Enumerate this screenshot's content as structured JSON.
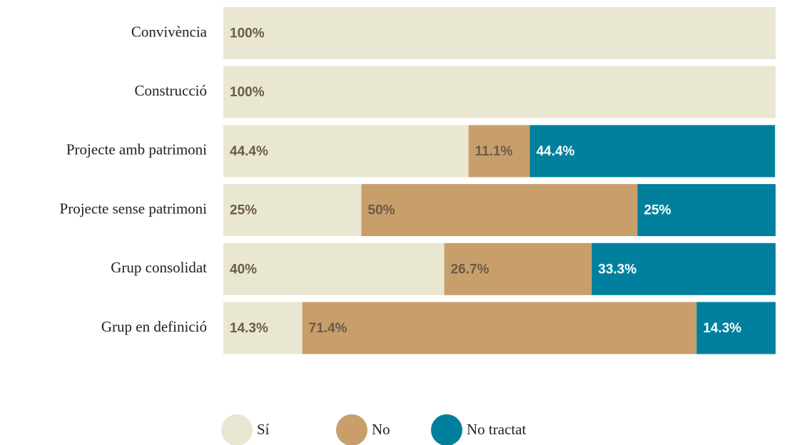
{
  "chart_data": {
    "type": "stacked_bar",
    "orientation": "horizontal",
    "categories": [
      "Convivència",
      "Construcció",
      "Projecte amb patrimoni",
      "Projecte sense patrimoni",
      "Grup consolidat",
      "Grup en definició"
    ],
    "xlim": [
      0,
      100
    ],
    "series": [
      {
        "name": "Sí",
        "color": "#e9e7d2",
        "label_color": "#6b5a4a",
        "values": [
          100,
          100,
          44.4,
          25,
          40,
          14.3
        ],
        "value_labels": [
          "100%",
          "100%",
          "44.4%",
          "25%",
          "40%",
          "14.3%"
        ]
      },
      {
        "name": "No",
        "color": "#c89f6b",
        "label_color": "#6b5a4a",
        "values": [
          null,
          null,
          11.1,
          50,
          26.7,
          71.4
        ],
        "value_labels": [
          null,
          null,
          "11.1%",
          "50%",
          "26.7%",
          "71.4%"
        ]
      },
      {
        "name": "No tractat",
        "color": "#00809c",
        "label_color": "#ffffff",
        "values": [
          null,
          null,
          44.4,
          25,
          33.3,
          14.3
        ],
        "value_labels": [
          null,
          null,
          "44.4%",
          "25%",
          "33.3%",
          "14.3%"
        ]
      }
    ],
    "legend": "bottom"
  }
}
